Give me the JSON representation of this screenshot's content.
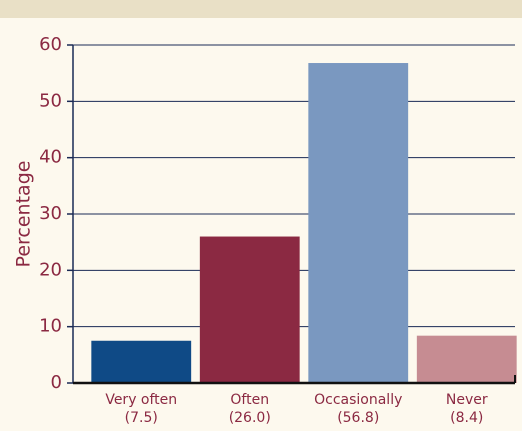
{
  "chart_data": {
    "type": "bar",
    "y_label": "Percentage",
    "categories": [
      "Very often",
      "Often",
      "Occasionally",
      "Never"
    ],
    "values": [
      7.5,
      26.0,
      56.8,
      8.4
    ],
    "value_labels": [
      "(7.5)",
      "(26.0)",
      "(56.8)",
      "(8.4)"
    ],
    "colors": [
      "#0f4a86",
      "#8b2942",
      "#7a98c0",
      "#c68c92"
    ],
    "ylim": [
      0,
      60
    ],
    "yticks": [
      0,
      10,
      20,
      30,
      40,
      50,
      60
    ],
    "grid": true
  }
}
